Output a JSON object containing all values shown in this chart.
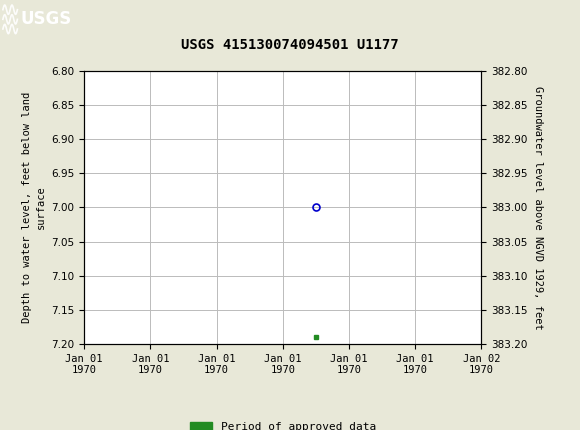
{
  "title": "USGS 415130074094501 U1177",
  "ylabel_left": "Depth to water level, feet below land\nsurface",
  "ylabel_right": "Groundwater level above NGVD 1929, feet",
  "ylim_left": [
    6.8,
    7.2
  ],
  "ylim_right": [
    382.8,
    383.2
  ],
  "yticks_left": [
    6.8,
    6.85,
    6.9,
    6.95,
    7.0,
    7.05,
    7.1,
    7.15,
    7.2
  ],
  "yticks_right": [
    382.8,
    382.85,
    382.9,
    382.95,
    383.0,
    383.05,
    383.1,
    383.15,
    383.2
  ],
  "data_point_x": 3.5,
  "data_point_y": 7.0,
  "green_mark_x": 3.5,
  "green_mark_y": 7.19,
  "xlim": [
    0,
    6
  ],
  "xtick_positions": [
    0,
    1,
    2,
    3,
    4,
    5,
    6
  ],
  "xtick_labels": [
    "Jan 01\n1970",
    "Jan 01\n1970",
    "Jan 01\n1970",
    "Jan 01\n1970",
    "Jan 01\n1970",
    "Jan 01\n1970",
    "Jan 02\n1970"
  ],
  "header_color": "#1a6b3c",
  "legend_label": "Period of approved data",
  "legend_color": "#228B22",
  "background_color": "#e8e8d8",
  "plot_bg": "#ffffff",
  "grid_color": "#bbbbbb",
  "title_fontsize": 10,
  "tick_fontsize": 7.5,
  "label_fontsize": 7.5
}
